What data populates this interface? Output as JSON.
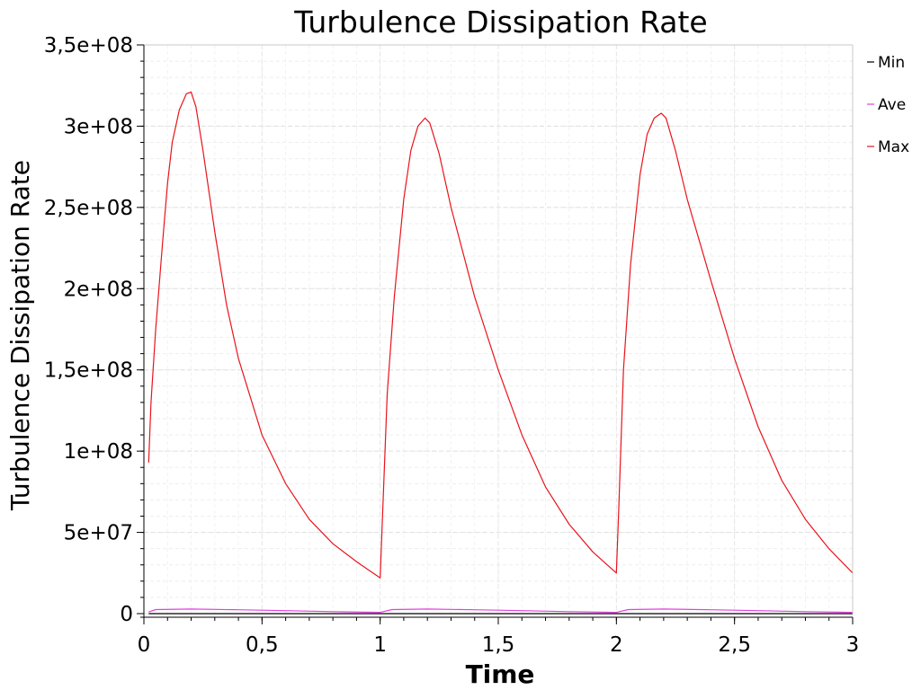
{
  "chart_data": {
    "type": "line",
    "title": "Turbulence Dissipation Rate",
    "xlabel": "Time",
    "ylabel": "Turbulence Dissipation Rate",
    "xlim": [
      0,
      3
    ],
    "ylim": [
      0,
      350000000
    ],
    "xticks": [
      0,
      0.5,
      1,
      1.5,
      2,
      2.5,
      3
    ],
    "xtick_labels": [
      "0",
      "0,5",
      "1",
      "1,5",
      "2",
      "2,5",
      "3"
    ],
    "yticks": [
      0,
      50000000,
      100000000,
      150000000,
      200000000,
      250000000,
      300000000,
      350000000
    ],
    "ytick_labels": [
      "0",
      "5e+07",
      "1e+08",
      "1,5e+08",
      "2e+08",
      "2,5e+08",
      "3e+08",
      "3,5e+08"
    ],
    "grid": true,
    "legend_position": "right",
    "series": [
      {
        "name": "Min",
        "color": "#000000",
        "x": [
          0.02,
          0.5,
          1.0,
          1.5,
          2.0,
          2.5,
          3.0
        ],
        "y": [
          0,
          0,
          0,
          0,
          0,
          0,
          0
        ]
      },
      {
        "name": "Ave",
        "color": "#e040e0",
        "x": [
          0.02,
          0.05,
          0.2,
          0.4,
          0.6,
          0.8,
          1.0,
          1.05,
          1.2,
          1.4,
          1.6,
          1.8,
          2.0,
          2.05,
          2.2,
          2.4,
          2.6,
          2.8,
          3.0
        ],
        "y": [
          1000000,
          2500000,
          2800000,
          2400000,
          1800000,
          1200000,
          800000,
          2500000,
          2800000,
          2400000,
          1800000,
          1200000,
          800000,
          2500000,
          2800000,
          2400000,
          1800000,
          1200000,
          800000
        ]
      },
      {
        "name": "Max",
        "color": "#e8141c",
        "x": [
          0.02,
          0.03,
          0.05,
          0.08,
          0.1,
          0.12,
          0.15,
          0.18,
          0.2,
          0.22,
          0.25,
          0.3,
          0.35,
          0.4,
          0.5,
          0.6,
          0.7,
          0.8,
          0.9,
          0.95,
          1.0,
          1.01,
          1.03,
          1.06,
          1.1,
          1.13,
          1.16,
          1.19,
          1.21,
          1.25,
          1.3,
          1.4,
          1.5,
          1.6,
          1.7,
          1.8,
          1.9,
          2.0,
          2.01,
          2.03,
          2.06,
          2.1,
          2.13,
          2.16,
          2.19,
          2.21,
          2.25,
          2.3,
          2.4,
          2.5,
          2.6,
          2.7,
          2.8,
          2.9,
          3.0
        ],
        "y": [
          93000000,
          130000000,
          175000000,
          230000000,
          265000000,
          290000000,
          310000000,
          320000000,
          321000000,
          312000000,
          285000000,
          235000000,
          190000000,
          157000000,
          110000000,
          80000000,
          58000000,
          43000000,
          32000000,
          27000000,
          22000000,
          60000000,
          135000000,
          195000000,
          255000000,
          285000000,
          300000000,
          305000000,
          302000000,
          283000000,
          250000000,
          195000000,
          150000000,
          110000000,
          78000000,
          55000000,
          38000000,
          25000000,
          65000000,
          150000000,
          215000000,
          270000000,
          295000000,
          305000000,
          308000000,
          305000000,
          285000000,
          255000000,
          205000000,
          157000000,
          115000000,
          82000000,
          58000000,
          40000000,
          25000000
        ]
      }
    ]
  }
}
